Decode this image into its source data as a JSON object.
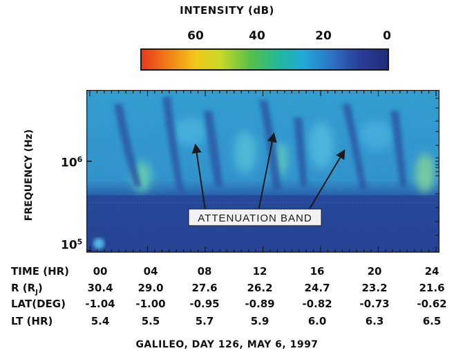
{
  "colorbar": {
    "title": "INTENSITY (dB)",
    "ticks": [
      "60",
      "40",
      "20",
      "0"
    ]
  },
  "axis": {
    "ylabel": "FREQUENCY (Hz)",
    "ytick_1e6_base": "10",
    "ytick_1e6_exp": "6",
    "ytick_1e5_base": "10",
    "ytick_1e5_exp": "5"
  },
  "annotation": "ATTENUATION BAND",
  "table": {
    "rows": [
      {
        "label": "TIME (HR)",
        "values": [
          "00",
          "04",
          "08",
          "12",
          "16",
          "20",
          "24"
        ]
      },
      {
        "label": "R (R",
        "label_sub": "J",
        "label_end": ")",
        "values": [
          "30.4",
          "29.0",
          "27.6",
          "26.2",
          "24.7",
          "23.2",
          "21.6"
        ]
      },
      {
        "label": "LAT(DEG)",
        "values": [
          "-1.04",
          "-1.00",
          "-0.95",
          "-0.89",
          "-0.82",
          "-0.73",
          "-0.62"
        ]
      },
      {
        "label": "LT (HR)",
        "values": [
          "5.4",
          "5.5",
          "5.7",
          "5.9",
          "6.0",
          "6.3",
          "6.5"
        ]
      }
    ]
  },
  "caption": "GALILEO,  DAY 126,  MAY 6,  1997",
  "chart_data": {
    "type": "heatmap",
    "title": "",
    "colorbar_label": "INTENSITY (dB)",
    "colorbar_range": [
      60,
      0
    ],
    "colorbar_ticks": [
      60,
      40,
      20,
      0
    ],
    "xlabel": "TIME (HR)",
    "x_ticks": [
      0,
      4,
      8,
      12,
      16,
      20,
      24
    ],
    "xlim": [
      0,
      24
    ],
    "ylabel": "FREQUENCY (Hz)",
    "yscale": "log",
    "y_ticks": [
      100000,
      1000000
    ],
    "annotation": "ATTENUATION BAND",
    "attenuation_band_arrow_targets_hr": [
      7.2,
      12.7,
      17.7
    ]
  }
}
